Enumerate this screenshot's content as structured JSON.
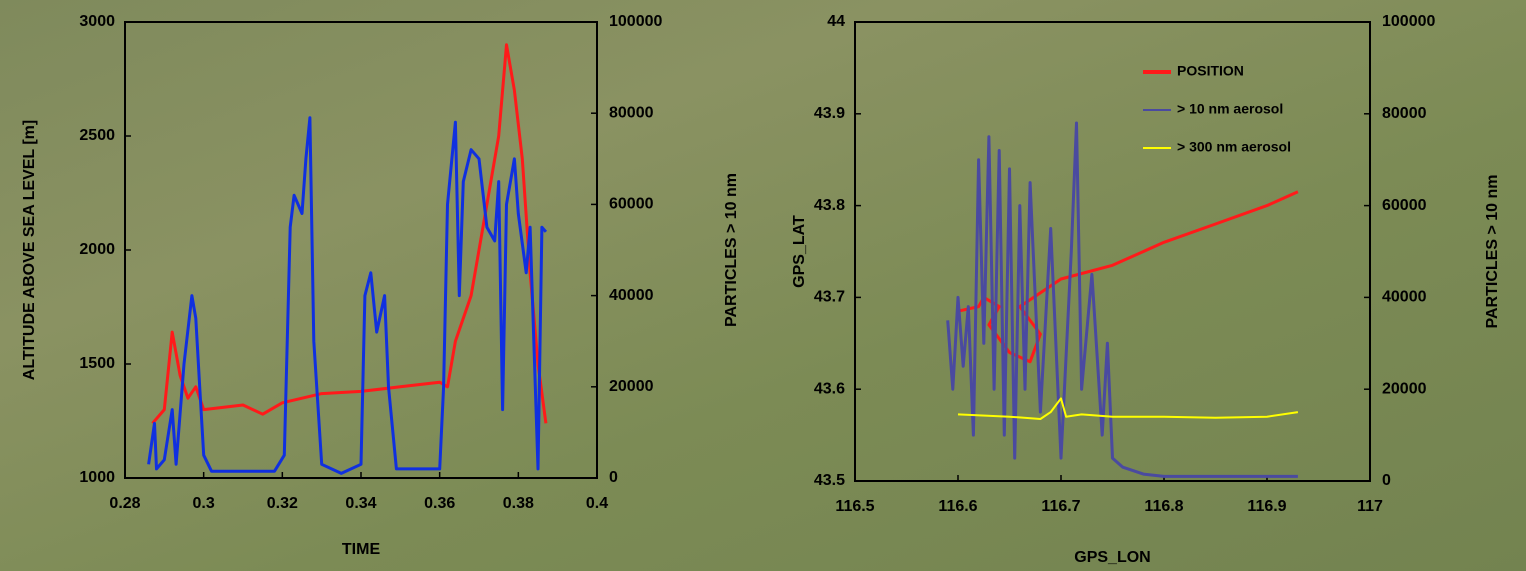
{
  "chart_data": [
    {
      "type": "line",
      "xlabel": "TIME",
      "ylabel": "ALTITUDE ABOVE SEA LEVEL [m]",
      "y2label": "PARTICLES > 10 nm",
      "xlim": [
        0.28,
        0.4
      ],
      "xticks": [
        0.28,
        0.3,
        0.32,
        0.34,
        0.36,
        0.38,
        0.4
      ],
      "ylim": [
        1000,
        3000
      ],
      "yticks": [
        1000,
        1500,
        2000,
        2500,
        3000
      ],
      "y2lim": [
        0,
        100000
      ],
      "y2ticks": [
        0,
        20000,
        40000,
        60000,
        80000,
        100000
      ],
      "series": [
        {
          "color": "#ff1a1a",
          "axis": "y",
          "x": [
            0.287,
            0.29,
            0.292,
            0.294,
            0.296,
            0.298,
            0.3,
            0.31,
            0.315,
            0.32,
            0.33,
            0.34,
            0.35,
            0.36,
            0.362,
            0.364,
            0.368,
            0.372,
            0.375,
            0.377,
            0.379,
            0.381,
            0.383,
            0.385,
            0.387
          ],
          "values": [
            1240,
            1300,
            1640,
            1450,
            1350,
            1400,
            1300,
            1320,
            1280,
            1330,
            1370,
            1380,
            1400,
            1420,
            1400,
            1600,
            1800,
            2200,
            2500,
            2900,
            2700,
            2400,
            1900,
            1500,
            1240
          ]
        },
        {
          "color": "#1030e0",
          "axis": "y2",
          "x": [
            0.286,
            0.2875,
            0.288,
            0.29,
            0.292,
            0.293,
            0.295,
            0.297,
            0.298,
            0.299,
            0.3,
            0.302,
            0.31,
            0.318,
            0.3205,
            0.322,
            0.323,
            0.325,
            0.326,
            0.327,
            0.328,
            0.33,
            0.335,
            0.34,
            0.341,
            0.3425,
            0.344,
            0.346,
            0.347,
            0.349,
            0.355,
            0.36,
            0.361,
            0.362,
            0.364,
            0.365,
            0.366,
            0.368,
            0.37,
            0.372,
            0.374,
            0.375,
            0.376,
            0.377,
            0.379,
            0.38,
            0.382,
            0.383,
            0.385,
            0.386,
            0.387
          ],
          "values": [
            3000,
            12000,
            2000,
            4000,
            15000,
            3000,
            25000,
            40000,
            35000,
            20000,
            5000,
            1500,
            1500,
            1500,
            5000,
            55000,
            62000,
            58000,
            70000,
            79000,
            30000,
            3000,
            1000,
            3000,
            40000,
            45000,
            32000,
            40000,
            20000,
            2000,
            2000,
            2000,
            20000,
            60000,
            78000,
            40000,
            65000,
            72000,
            70000,
            55000,
            52000,
            65000,
            15000,
            60000,
            70000,
            58000,
            45000,
            55000,
            2000,
            55000,
            54000
          ]
        }
      ]
    },
    {
      "type": "line",
      "xlabel": "GPS_LON",
      "ylabel": "GPS_LAT",
      "y2label": "PARTICLES > 10 nm",
      "xlim": [
        116.5,
        117
      ],
      "xticks": [
        116.5,
        116.6,
        116.7,
        116.8,
        116.9,
        117
      ],
      "ylim": [
        43.5,
        44
      ],
      "yticks": [
        43.5,
        43.6,
        43.7,
        43.8,
        43.9,
        44
      ],
      "y2lim": [
        0,
        100000
      ],
      "y2ticks": [
        0,
        20000,
        40000,
        60000,
        80000,
        100000
      ],
      "legend": "upper right",
      "series": [
        {
          "name": "POSITION",
          "color": "#ff1a1a",
          "axis": "y",
          "x": [
            116.6,
            116.62,
            116.625,
            116.64,
            116.63,
            116.65,
            116.67,
            116.68,
            116.66,
            116.7,
            116.75,
            116.8,
            116.85,
            116.9,
            116.93
          ],
          "values": [
            43.685,
            43.69,
            43.7,
            43.69,
            43.67,
            43.64,
            43.63,
            43.66,
            43.69,
            43.72,
            43.735,
            43.76,
            43.78,
            43.8,
            43.815
          ]
        },
        {
          "name": ">   10 nm aerosol",
          "color": "#4a4aa0",
          "axis": "y2",
          "x": [
            116.59,
            116.595,
            116.6,
            116.605,
            116.61,
            116.615,
            116.62,
            116.625,
            116.63,
            116.635,
            116.64,
            116.645,
            116.65,
            116.655,
            116.66,
            116.665,
            116.67,
            116.68,
            116.69,
            116.7,
            116.71,
            116.715,
            116.72,
            116.73,
            116.74,
            116.745,
            116.75,
            116.76,
            116.78,
            116.8,
            116.85,
            116.93
          ],
          "values": [
            35000,
            20000,
            40000,
            25000,
            38000,
            10000,
            70000,
            30000,
            75000,
            20000,
            72000,
            10000,
            68000,
            5000,
            60000,
            20000,
            65000,
            15000,
            55000,
            5000,
            50000,
            78000,
            20000,
            45000,
            10000,
            30000,
            5000,
            3000,
            1500,
            1000,
            1000,
            1000
          ]
        },
        {
          "name": "> 300 nm aerosol",
          "color": "#ffff00",
          "axis": "y2",
          "x": [
            116.6,
            116.65,
            116.68,
            116.69,
            116.7,
            116.705,
            116.72,
            116.75,
            116.8,
            116.85,
            116.9,
            116.93
          ],
          "values": [
            14500,
            14000,
            13500,
            15000,
            18000,
            14000,
            14500,
            14000,
            14000,
            13800,
            14000,
            15000
          ]
        }
      ]
    }
  ]
}
